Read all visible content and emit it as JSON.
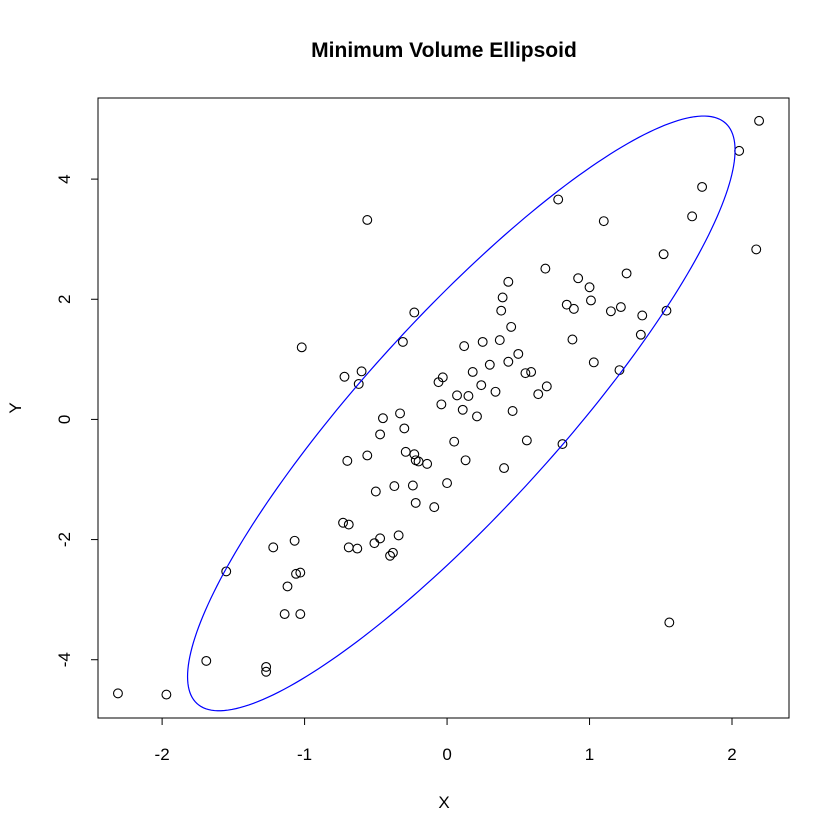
{
  "chart_data": {
    "type": "scatter",
    "title": "Minimum Volume Ellipsoid",
    "xlabel": "X",
    "ylabel": "Y",
    "xlim": [
      -2.45,
      2.4
    ],
    "ylim": [
      -4.97,
      5.35
    ],
    "x_ticks": [
      -2,
      -1,
      0,
      1,
      2
    ],
    "x_tick_labels": [
      "-2",
      "-1",
      "0",
      "1",
      "2"
    ],
    "y_ticks": [
      -4,
      -2,
      0,
      2,
      4
    ],
    "y_tick_labels": [
      "-4",
      "-2",
      "0",
      "2",
      "4"
    ],
    "grid": false,
    "legend": "none",
    "point_color": "#000000",
    "ellipse_color": "#0000ff",
    "ellipse": {
      "center": [
        0.1,
        0.1
      ],
      "semi_axis_major": 5.6,
      "semi_axis_minor": 1.02,
      "angle_deg": 59.6
    },
    "points": [
      [
        2.19,
        4.97
      ],
      [
        2.05,
        4.47
      ],
      [
        1.79,
        3.87
      ],
      [
        1.72,
        3.38
      ],
      [
        2.17,
        2.83
      ],
      [
        0.78,
        3.66
      ],
      [
        1.1,
        3.3
      ],
      [
        -0.56,
        3.32
      ],
      [
        1.52,
        2.75
      ],
      [
        0.69,
        2.51
      ],
      [
        0.92,
        2.35
      ],
      [
        0.43,
        2.29
      ],
      [
        1.0,
        2.2
      ],
      [
        1.26,
        2.43
      ],
      [
        0.39,
        2.03
      ],
      [
        1.01,
        1.98
      ],
      [
        0.84,
        1.91
      ],
      [
        0.89,
        1.84
      ],
      [
        1.15,
        1.8
      ],
      [
        1.22,
        1.87
      ],
      [
        1.54,
        1.81
      ],
      [
        1.37,
        1.73
      ],
      [
        -0.23,
        1.78
      ],
      [
        0.38,
        1.81
      ],
      [
        0.45,
        1.54
      ],
      [
        1.36,
        1.41
      ],
      [
        0.88,
        1.33
      ],
      [
        0.37,
        1.32
      ],
      [
        0.25,
        1.29
      ],
      [
        -0.31,
        1.29
      ],
      [
        0.12,
        1.22
      ],
      [
        -1.02,
        1.2
      ],
      [
        0.5,
        1.09
      ],
      [
        0.43,
        0.96
      ],
      [
        1.03,
        0.95
      ],
      [
        0.3,
        0.91
      ],
      [
        1.21,
        0.82
      ],
      [
        -0.6,
        0.8
      ],
      [
        0.18,
        0.79
      ],
      [
        0.59,
        0.79
      ],
      [
        0.55,
        0.77
      ],
      [
        -0.72,
        0.71
      ],
      [
        -0.03,
        0.7
      ],
      [
        -0.62,
        0.59
      ],
      [
        -0.06,
        0.62
      ],
      [
        0.24,
        0.57
      ],
      [
        0.7,
        0.55
      ],
      [
        0.34,
        0.46
      ],
      [
        0.07,
        0.4
      ],
      [
        0.15,
        0.39
      ],
      [
        0.64,
        0.42
      ],
      [
        -0.04,
        0.25
      ],
      [
        0.11,
        0.16
      ],
      [
        0.46,
        0.14
      ],
      [
        -0.33,
        0.1
      ],
      [
        0.21,
        0.05
      ],
      [
        -0.45,
        0.02
      ],
      [
        -0.3,
        -0.15
      ],
      [
        -0.47,
        -0.25
      ],
      [
        0.05,
        -0.37
      ],
      [
        0.56,
        -0.35
      ],
      [
        0.81,
        -0.41
      ],
      [
        -0.29,
        -0.54
      ],
      [
        -0.56,
        -0.6
      ],
      [
        -0.23,
        -0.58
      ],
      [
        -0.22,
        -0.68
      ],
      [
        -0.2,
        -0.7
      ],
      [
        -0.7,
        -0.69
      ],
      [
        -0.14,
        -0.74
      ],
      [
        0.13,
        -0.68
      ],
      [
        0.4,
        -0.81
      ],
      [
        0.0,
        -1.06
      ],
      [
        -0.37,
        -1.11
      ],
      [
        -0.24,
        -1.1
      ],
      [
        -0.5,
        -1.2
      ],
      [
        -0.22,
        -1.39
      ],
      [
        -0.09,
        -1.46
      ],
      [
        -0.73,
        -1.72
      ],
      [
        -0.69,
        -1.75
      ],
      [
        -0.34,
        -1.93
      ],
      [
        -0.47,
        -1.98
      ],
      [
        -0.51,
        -2.06
      ],
      [
        -0.69,
        -2.13
      ],
      [
        -0.63,
        -2.15
      ],
      [
        -0.38,
        -2.22
      ],
      [
        -0.4,
        -2.27
      ],
      [
        -1.07,
        -2.02
      ],
      [
        -1.22,
        -2.13
      ],
      [
        -1.55,
        -2.53
      ],
      [
        -1.06,
        -2.57
      ],
      [
        -1.03,
        -2.55
      ],
      [
        -1.12,
        -2.78
      ],
      [
        -1.14,
        -3.24
      ],
      [
        -1.03,
        -3.24
      ],
      [
        1.56,
        -3.38
      ],
      [
        -1.69,
        -4.02
      ],
      [
        -1.27,
        -4.12
      ],
      [
        -1.27,
        -4.2
      ],
      [
        -2.31,
        -4.56
      ],
      [
        -1.97,
        -4.58
      ]
    ]
  }
}
